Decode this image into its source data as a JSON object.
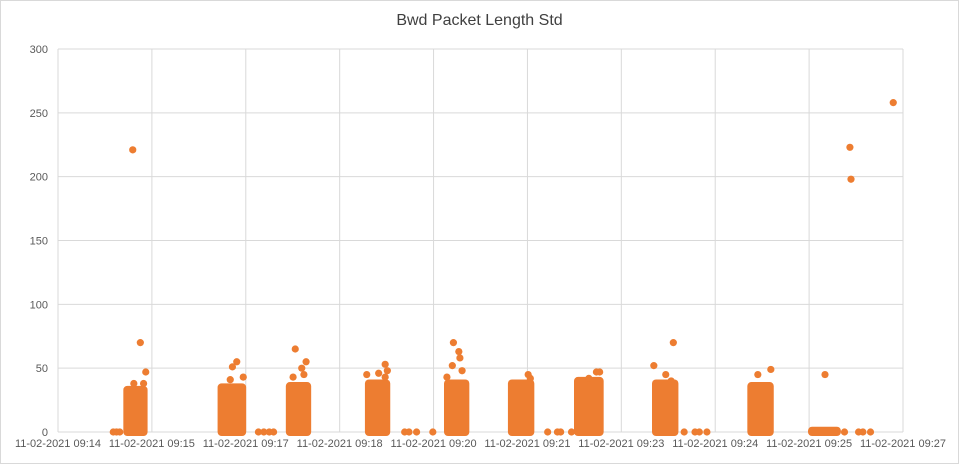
{
  "chart_data": {
    "type": "scatter",
    "title": "Bwd Packet Length Std",
    "xlabel": "",
    "ylabel": "",
    "ylim": [
      0,
      300
    ],
    "yticks": [
      "0",
      "50",
      "100",
      "150",
      "200",
      "250",
      "300"
    ],
    "xlim": [
      "11-02-2021 09:14",
      "11-02-2021 09:27"
    ],
    "xticks": [
      "11-02-2021 09:14",
      "11-02-2021 09:15",
      "11-02-2021 09:17",
      "11-02-2021 09:18",
      "11-02-2021 09:20",
      "11-02-2021 09:21",
      "11-02-2021 09:23",
      "11-02-2021 09:24",
      "11-02-2021 09:25",
      "11-02-2021 09:27"
    ],
    "grid": "vertical and horizontal",
    "legend": "none",
    "marker_color": "#ED7D31",
    "series": [
      {
        "points": [
          [
            "11-02-2021 09:14:51",
            0
          ],
          [
            "11-02-2021 09:14:54",
            0
          ],
          [
            "11-02-2021 09:14:57",
            0
          ],
          [
            "11-02-2021 09:15:09",
            221
          ],
          [
            "11-02-2021 09:15:16",
            70
          ],
          [
            "11-02-2021 09:15:21",
            47
          ],
          [
            "11-02-2021 09:15:10",
            38
          ],
          [
            "11-02-2021 09:15:19",
            38
          ],
          [
            "11-02-2021 09:16:45",
            55
          ],
          [
            "11-02-2021 09:16:41",
            51
          ],
          [
            "11-02-2021 09:16:51",
            43
          ],
          [
            "11-02-2021 09:16:39",
            41
          ],
          [
            "11-02-2021 09:17:05",
            0
          ],
          [
            "11-02-2021 09:17:10",
            0
          ],
          [
            "11-02-2021 09:17:15",
            0
          ],
          [
            "11-02-2021 09:17:19",
            0
          ],
          [
            "11-02-2021 09:17:39",
            65
          ],
          [
            "11-02-2021 09:17:49",
            55
          ],
          [
            "11-02-2021 09:17:45",
            50
          ],
          [
            "11-02-2021 09:17:47",
            45
          ],
          [
            "11-02-2021 09:17:37",
            43
          ],
          [
            "11-02-2021 09:19:02",
            53
          ],
          [
            "11-02-2021 09:19:04",
            48
          ],
          [
            "11-02-2021 09:18:56",
            46
          ],
          [
            "11-02-2021 09:18:45",
            45
          ],
          [
            "11-02-2021 09:19:02",
            43
          ],
          [
            "11-02-2021 09:19:20",
            0
          ],
          [
            "11-02-2021 09:19:24",
            0
          ],
          [
            "11-02-2021 09:19:31",
            0
          ],
          [
            "11-02-2021 09:19:46",
            0
          ],
          [
            "11-02-2021 09:20:05",
            70
          ],
          [
            "11-02-2021 09:20:10",
            63
          ],
          [
            "11-02-2021 09:20:11",
            58
          ],
          [
            "11-02-2021 09:20:04",
            52
          ],
          [
            "11-02-2021 09:20:13",
            48
          ],
          [
            "11-02-2021 09:19:59",
            43
          ],
          [
            "11-02-2021 09:21:14",
            45
          ],
          [
            "11-02-2021 09:21:16",
            42
          ],
          [
            "11-02-2021 09:21:32",
            0
          ],
          [
            "11-02-2021 09:21:41",
            0
          ],
          [
            "11-02-2021 09:21:44",
            0
          ],
          [
            "11-02-2021 09:21:54",
            0
          ],
          [
            "11-02-2021 09:22:17",
            47
          ],
          [
            "11-02-2021 09:22:20",
            47
          ],
          [
            "11-02-2021 09:22:10",
            42
          ],
          [
            "11-02-2021 09:23:28",
            70
          ],
          [
            "11-02-2021 09:23:10",
            52
          ],
          [
            "11-02-2021 09:23:21",
            45
          ],
          [
            "11-02-2021 09:23:26",
            40
          ],
          [
            "11-02-2021 09:23:38",
            0
          ],
          [
            "11-02-2021 09:23:48",
            0
          ],
          [
            "11-02-2021 09:23:52",
            0
          ],
          [
            "11-02-2021 09:23:59",
            0
          ],
          [
            "11-02-2021 09:24:58",
            49
          ],
          [
            "11-02-2021 09:24:46",
            45
          ],
          [
            "11-02-2021 09:25:48",
            45
          ],
          [
            "11-02-2021 09:26:11",
            223
          ],
          [
            "11-02-2021 09:26:12",
            198
          ],
          [
            "11-02-2021 09:26:06",
            0
          ],
          [
            "11-02-2021 09:26:19",
            0
          ],
          [
            "11-02-2021 09:26:23",
            0
          ],
          [
            "11-02-2021 09:26:30",
            0
          ],
          [
            "11-02-2021 09:26:51",
            258
          ]
        ],
        "clusters": [
          {
            "from": "11-02-2021 09:15:04",
            "to": "11-02-2021 09:15:19",
            "min": 0,
            "max": 33
          },
          {
            "from": "11-02-2021 09:16:31",
            "to": "11-02-2021 09:16:50",
            "min": 0,
            "max": 35
          },
          {
            "from": "11-02-2021 09:17:34",
            "to": "11-02-2021 09:17:50",
            "min": 0,
            "max": 36
          },
          {
            "from": "11-02-2021 09:18:47",
            "to": "11-02-2021 09:19:03",
            "min": 0,
            "max": 38
          },
          {
            "from": "11-02-2021 09:20:00",
            "to": "11-02-2021 09:20:16",
            "min": 0,
            "max": 38
          },
          {
            "from": "11-02-2021 09:20:59",
            "to": "11-02-2021 09:21:16",
            "min": 0,
            "max": 38
          },
          {
            "from": "11-02-2021 09:22:00",
            "to": "11-02-2021 09:22:20",
            "min": 0,
            "max": 40
          },
          {
            "from": "11-02-2021 09:23:12",
            "to": "11-02-2021 09:23:29",
            "min": 0,
            "max": 38
          },
          {
            "from": "11-02-2021 09:24:40",
            "to": "11-02-2021 09:24:57",
            "min": 0,
            "max": 36
          },
          {
            "from": "11-02-2021 09:25:36",
            "to": "11-02-2021 09:25:59",
            "min": 0,
            "max": 1
          }
        ]
      }
    ]
  }
}
